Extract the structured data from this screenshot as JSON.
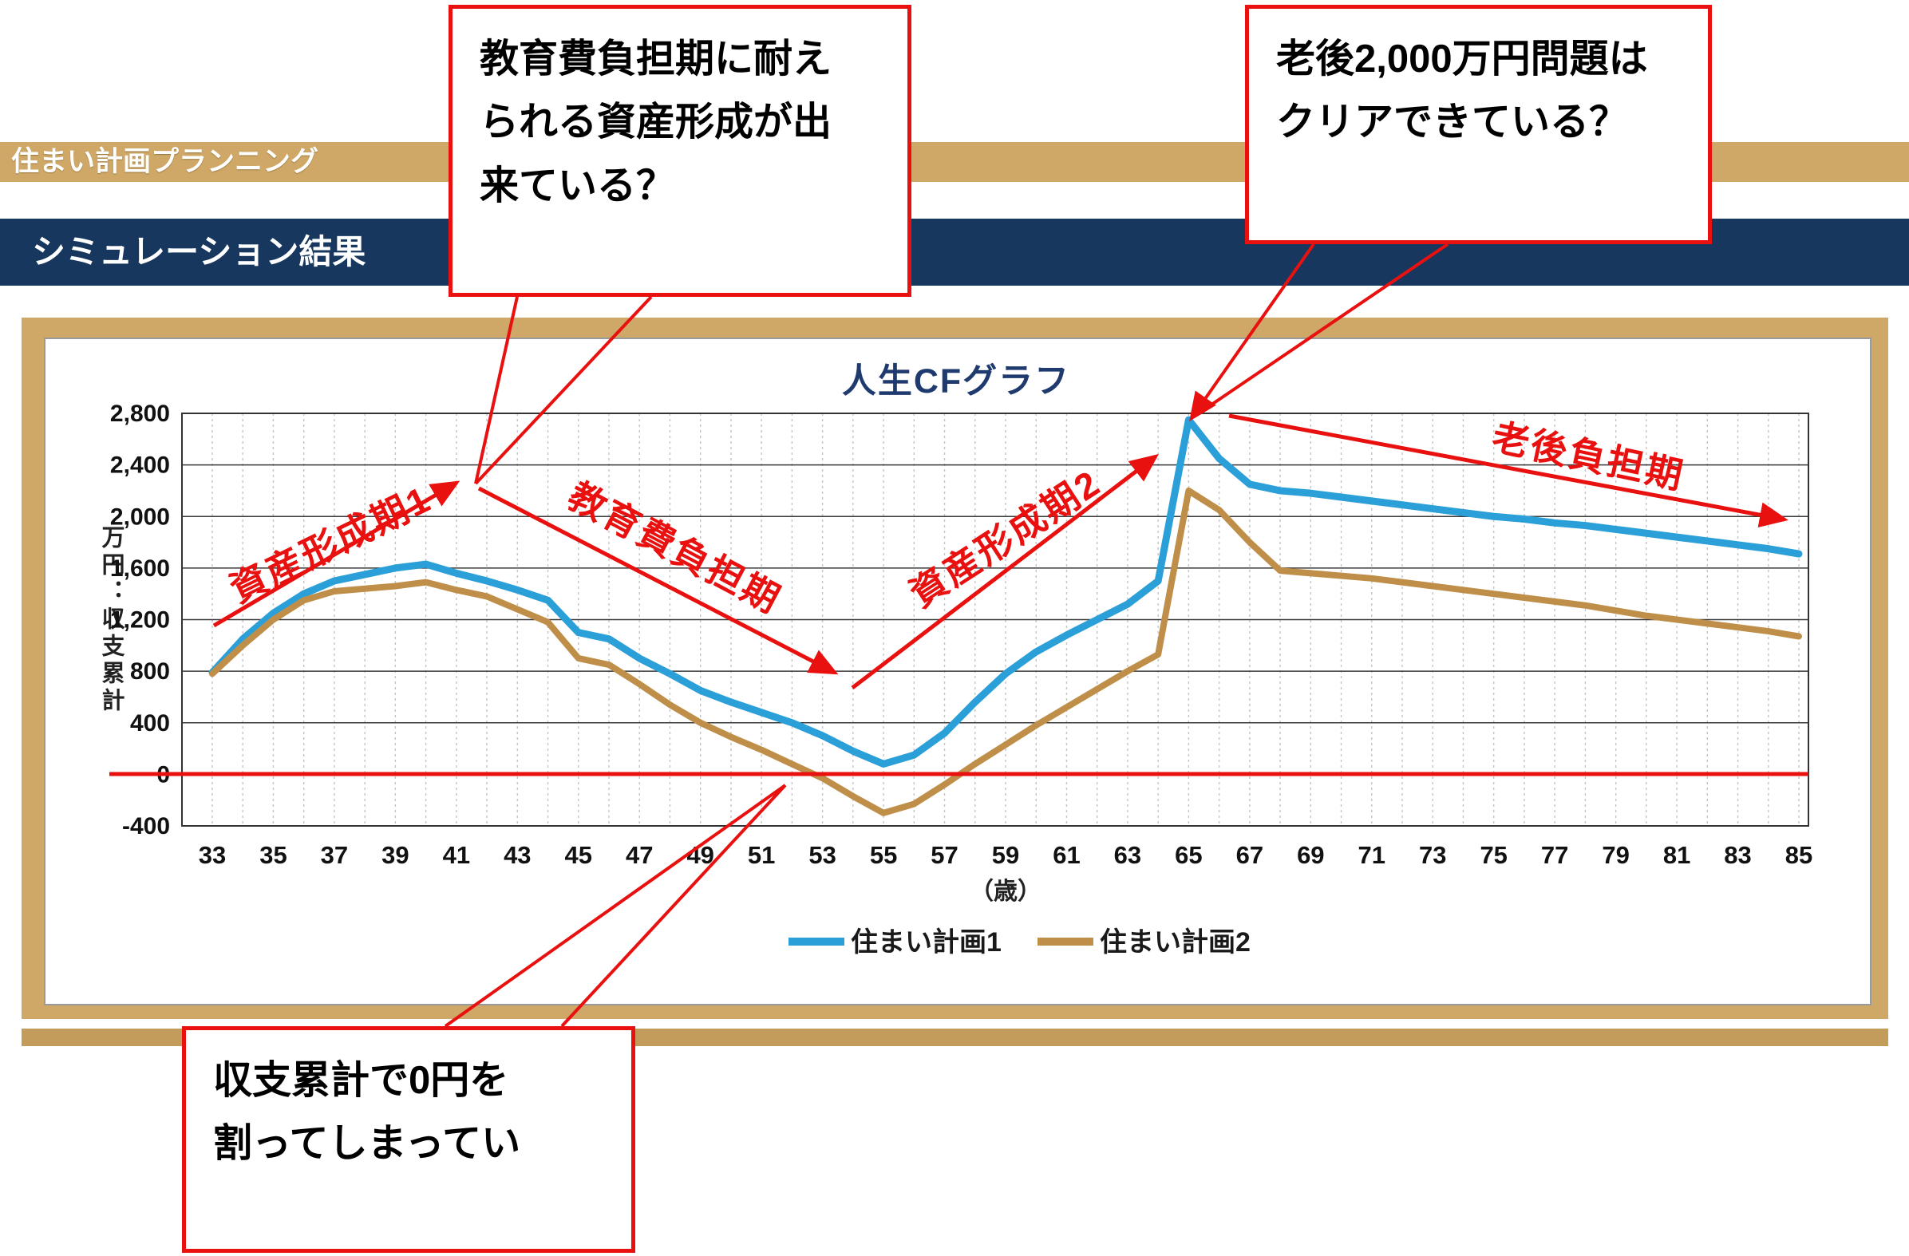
{
  "header": {
    "app_title": "住まい計画プランニング",
    "section_title": "シミュレーション結果"
  },
  "callouts": {
    "education": {
      "line1": "教育費負担期に耐え",
      "line2": "られる資産形成が出",
      "line3": "来ている？"
    },
    "retirement": {
      "line1": "老後2,000万円問題は",
      "line2": "クリアできている？"
    },
    "deficit": {
      "line1": "収支累計で0円を",
      "line2": "割ってしまってい"
    }
  },
  "chart_data": {
    "type": "line",
    "title": "人生CFグラフ",
    "ylabel": "万円：収支累計",
    "xlabel": "（歳）",
    "ylim": [
      -400,
      2800
    ],
    "ytick_values": [
      2800,
      2400,
      2000,
      1600,
      1200,
      800,
      400,
      0,
      -400
    ],
    "ytick_labels": [
      "2,800",
      "2,400",
      "2,000",
      "1,600",
      "1,200",
      "800",
      "400",
      "0",
      "-400"
    ],
    "x": [
      33,
      34,
      35,
      36,
      37,
      38,
      39,
      40,
      41,
      42,
      43,
      44,
      45,
      46,
      47,
      48,
      49,
      50,
      51,
      52,
      53,
      54,
      55,
      56,
      57,
      58,
      59,
      60,
      61,
      62,
      63,
      64,
      65,
      66,
      67,
      68,
      69,
      70,
      71,
      72,
      73,
      74,
      75,
      76,
      77,
      78,
      79,
      80,
      81,
      82,
      83,
      84,
      85
    ],
    "xticks": [
      33,
      35,
      37,
      39,
      41,
      43,
      45,
      47,
      49,
      51,
      53,
      55,
      57,
      59,
      61,
      63,
      65,
      67,
      69,
      71,
      73,
      75,
      77,
      79,
      81,
      83,
      85
    ],
    "grid": true,
    "legend_position": "bottom",
    "zero_line_color": "#e8110f",
    "phases": [
      "資産形成期1",
      "教育費負担期",
      "資産形成期2",
      "老後負担期"
    ],
    "series": [
      {
        "name": "住まい計画1",
        "color": "#2b9fd8",
        "values": [
          790,
          1050,
          1250,
          1400,
          1500,
          1550,
          1600,
          1630,
          1560,
          1500,
          1430,
          1350,
          1100,
          1050,
          900,
          780,
          650,
          560,
          480,
          400,
          300,
          180,
          80,
          150,
          320,
          560,
          780,
          950,
          1080,
          1200,
          1320,
          1500,
          2750,
          2450,
          2250,
          2200,
          2180,
          2150,
          2120,
          2090,
          2060,
          2030,
          2000,
          1980,
          1950,
          1930,
          1900,
          1870,
          1840,
          1810,
          1780,
          1750,
          1710
        ]
      },
      {
        "name": "住まい計画2",
        "color": "#bf8f4a",
        "values": [
          780,
          1000,
          1200,
          1350,
          1420,
          1440,
          1460,
          1490,
          1430,
          1380,
          1280,
          1180,
          900,
          850,
          700,
          540,
          400,
          290,
          190,
          80,
          -30,
          -170,
          -300,
          -230,
          -80,
          80,
          230,
          380,
          520,
          660,
          800,
          930,
          2200,
          2050,
          1800,
          1580,
          1560,
          1540,
          1520,
          1490,
          1460,
          1430,
          1400,
          1370,
          1340,
          1310,
          1270,
          1230,
          1200,
          1170,
          1140,
          1110,
          1070
        ]
      }
    ]
  }
}
